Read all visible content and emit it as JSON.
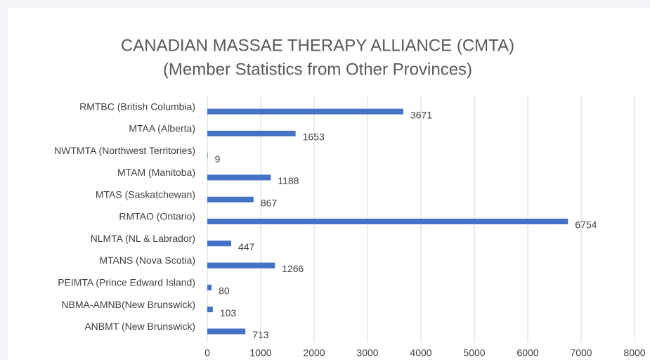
{
  "chart_data": {
    "type": "bar",
    "orientation": "horizontal",
    "title": "CANADIAN MASSAE THERAPY ALLIANCE (CMTA)",
    "subtitle": "(Member Statistics from Other Provinces)",
    "categories": [
      "RMTBC (British Columbia)",
      "MTAA (Alberta)",
      "NWTMTA (Northwest Territories)",
      "MTAM (Manitoba)",
      "MTAS (Saskatchewan)",
      "RMTAO (Ontario)",
      "NLMTA (NL & Labrador)",
      "MTANS (Nova Scotia)",
      "PEIMTA (Prince Edward Island)",
      "NBMA-AMNB(New Brunswick)",
      "ANBMT (New Brunswick)"
    ],
    "values": [
      3671,
      1653,
      9,
      1188,
      867,
      6754,
      447,
      1266,
      80,
      103,
      713
    ],
    "color": "#4472c4",
    "xlim": [
      0,
      8000
    ],
    "xticks": [
      0,
      1000,
      2000,
      3000,
      4000,
      5000,
      6000,
      7000,
      8000
    ],
    "grid": true
  }
}
